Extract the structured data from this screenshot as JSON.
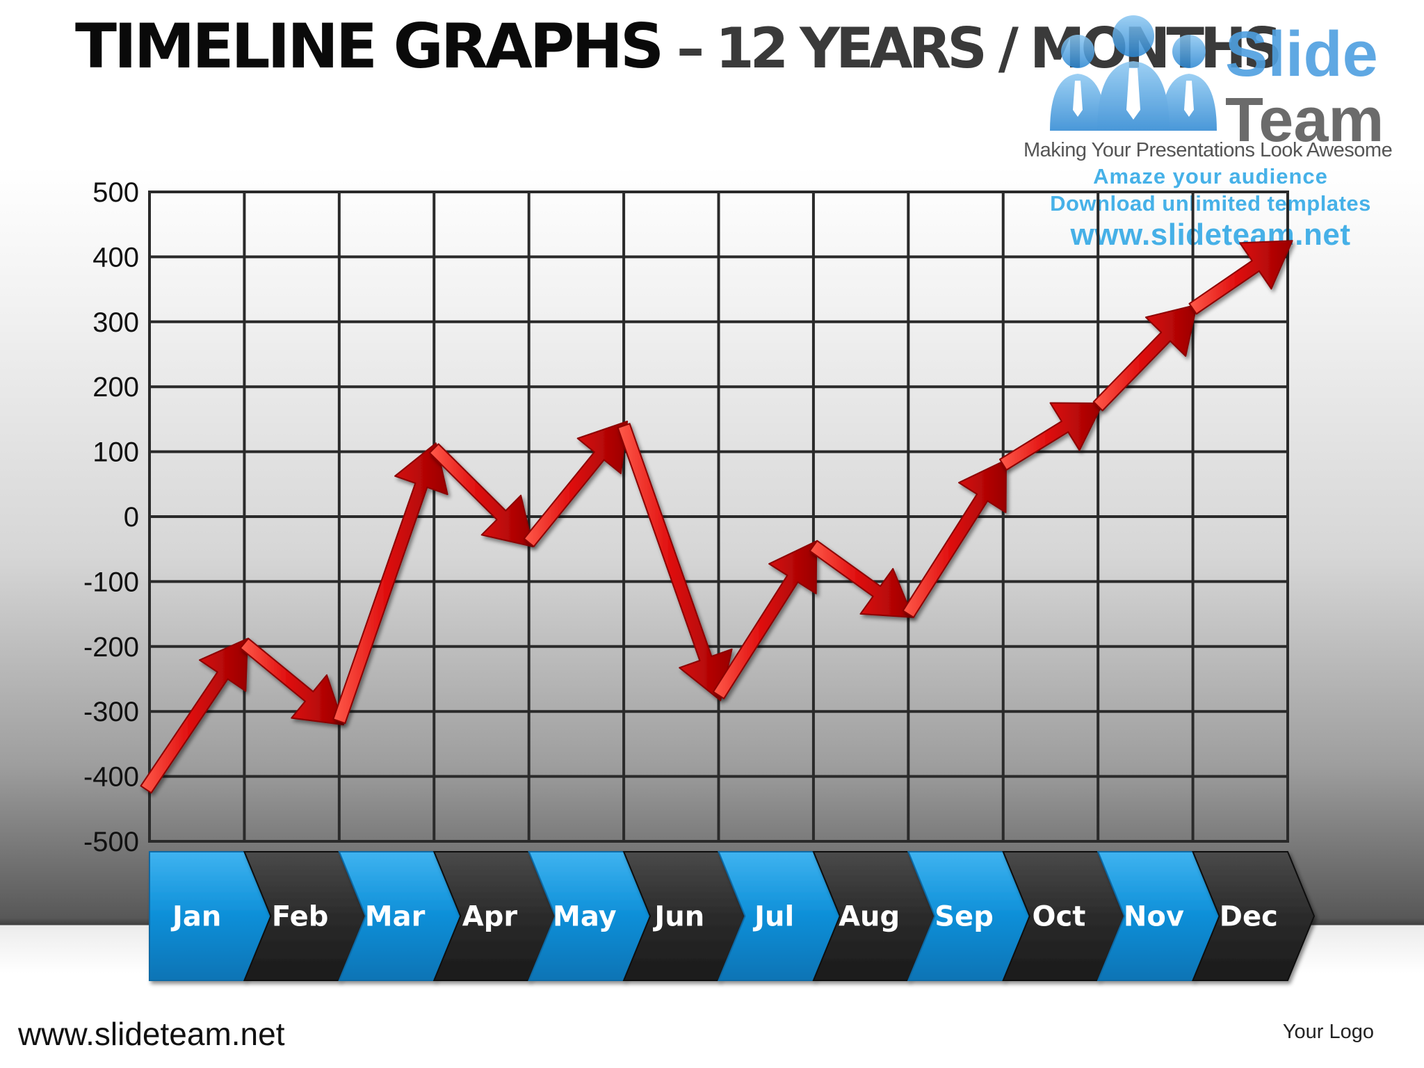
{
  "slide": {
    "title_main": "TIMELINE  GRAPHS",
    "title_sub": " – 12 YEARS / MONTHS",
    "footer_url": "www.slideteam.net",
    "footer_logo": "Your Logo"
  },
  "brand": {
    "name_1": "Slide",
    "name_2": "Team",
    "tagline": "Making Your Presentations Look Awesome",
    "promo_1": "Amaze your audience",
    "promo_2": "Download unlimited templates",
    "promo_3": "www.slideteam.net",
    "accent_blue": "#0d8fd8",
    "dark_tab": "#2b2b2b"
  },
  "chart_data": {
    "type": "line",
    "title": "",
    "xlabel": "",
    "ylabel": "",
    "categories": [
      "Jan",
      "Feb",
      "Mar",
      "Apr",
      "May",
      "Jun",
      "Jul",
      "Aug",
      "Sep",
      "Oct",
      "Nov",
      "Dec"
    ],
    "x_label_colors": [
      "#0d8fd8",
      "#2b2b2b",
      "#0d8fd8",
      "#2b2b2b",
      "#0d8fd8",
      "#2b2b2b",
      "#0d8fd8",
      "#2b2b2b",
      "#0d8fd8",
      "#2b2b2b",
      "#0d8fd8",
      "#2b2b2b"
    ],
    "ylim": [
      -500,
      500
    ],
    "yticks": [
      500,
      400,
      300,
      200,
      100,
      0,
      -100,
      -200,
      -300,
      -400,
      -500
    ],
    "grid": true,
    "series": [
      {
        "color": "#e01010",
        "style": "arrow",
        "points": [
          {
            "x": "start",
            "y": -420
          },
          {
            "x": "Jan",
            "y": -195
          },
          {
            "x": "Feb",
            "y": -315
          },
          {
            "x": "Mar",
            "y": 105
          },
          {
            "x": "Apr",
            "y": -40
          },
          {
            "x": "May",
            "y": 140
          },
          {
            "x": "Jun",
            "y": -275
          },
          {
            "x": "Jul",
            "y": -45
          },
          {
            "x": "Aug",
            "y": -150
          },
          {
            "x": "Sep",
            "y": 80
          },
          {
            "x": "Oct",
            "y": 170
          },
          {
            "x": "Nov",
            "y": 320
          },
          {
            "x": "Dec",
            "y": 420
          }
        ]
      }
    ]
  }
}
